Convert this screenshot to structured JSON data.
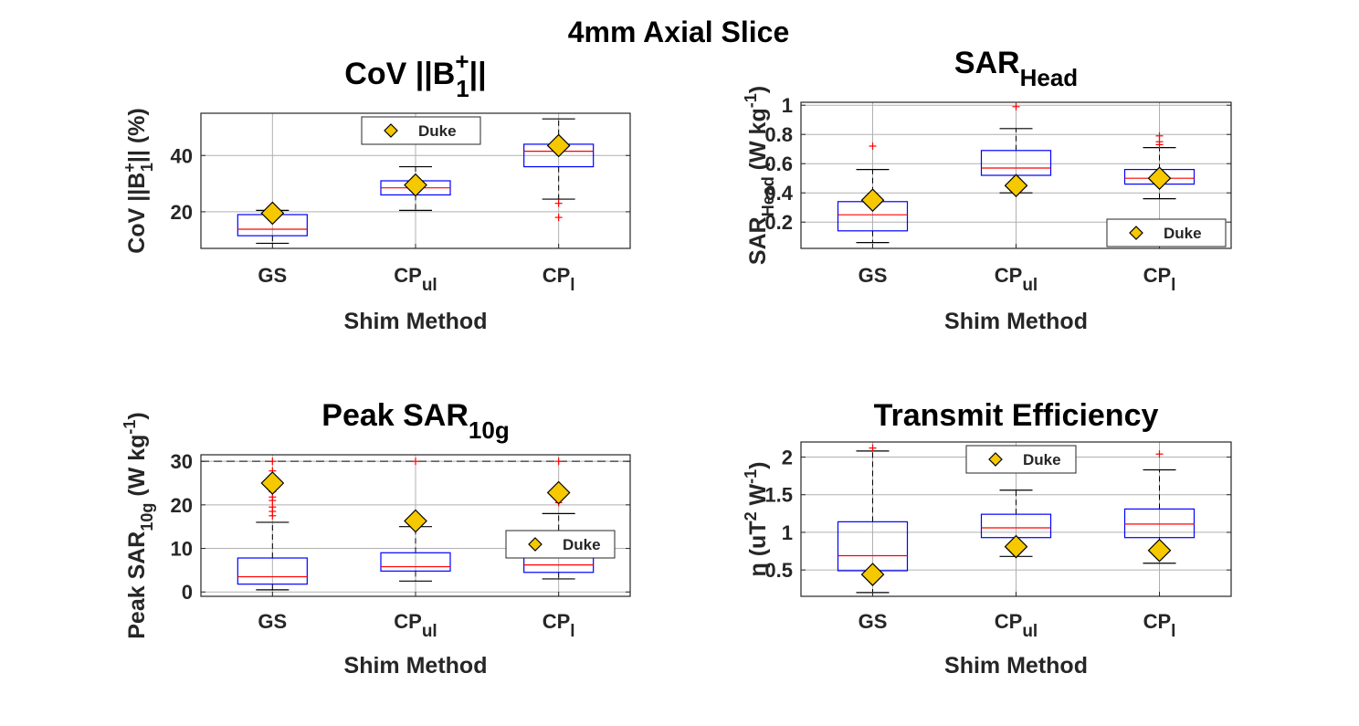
{
  "figure": {
    "title": "4mm Axial Slice",
    "legend_label": "Duke"
  },
  "colors": {
    "box": "#0000ff",
    "median": "#ff0000",
    "outlier": "#ff0000",
    "whisker": "#000000",
    "marker_fill": "#f5c800",
    "marker_edge": "#000000",
    "grid": "#b0b0b0",
    "axes": "#262626"
  },
  "chart_data": [
    {
      "type": "box",
      "title": {
        "base": "CoV ||B",
        "sup": "+",
        "sub": "1",
        "after": "||"
      },
      "xlabel": "Shim Method",
      "ylabel": {
        "base": "CoV ||B",
        "sup": "+",
        "sub": "1",
        "after": "|| (%)"
      },
      "categories": [
        {
          "base": "GS",
          "sub": ""
        },
        {
          "base": "CP",
          "sub": "ul"
        },
        {
          "base": "CP",
          "sub": "l"
        }
      ],
      "ylim": [
        7,
        55
      ],
      "yticks": [
        20,
        40
      ],
      "grid": true,
      "legend_position": "top-center",
      "boxes": [
        {
          "q1": 11.5,
          "median": 13.8,
          "q3": 19.0,
          "whisker_low": 8.8,
          "whisker_high": 20.5,
          "outliers": []
        },
        {
          "q1": 26.0,
          "median": 28.5,
          "q3": 31.0,
          "whisker_low": 20.5,
          "whisker_high": 36.0,
          "outliers": []
        },
        {
          "q1": 36.0,
          "median": 41.5,
          "q3": 44.0,
          "whisker_low": 24.5,
          "whisker_high": 53.0,
          "outliers": [
            23.0,
            18.0
          ]
        }
      ],
      "duke": [
        19.5,
        29.5,
        43.5
      ]
    },
    {
      "type": "box",
      "title": {
        "base": "SAR",
        "sub": "Head"
      },
      "xlabel": "Shim Method",
      "ylabel": {
        "base": "SAR",
        "sub": "Head",
        "after": " (W kg",
        "sup2": "-1",
        "after2": ")"
      },
      "categories": [
        {
          "base": "GS",
          "sub": ""
        },
        {
          "base": "CP",
          "sub": "ul"
        },
        {
          "base": "CP",
          "sub": "l"
        }
      ],
      "ylim": [
        0.02,
        1.02
      ],
      "yticks": [
        0.2,
        0.4,
        0.6,
        0.8,
        1
      ],
      "ytick_labels": [
        "0.2",
        "0.4",
        "0.6",
        "0.8",
        "1"
      ],
      "grid": true,
      "legend_position": "bottom-right",
      "boxes": [
        {
          "q1": 0.14,
          "median": 0.25,
          "q3": 0.34,
          "whisker_low": 0.06,
          "whisker_high": 0.56,
          "outliers": [
            0.72
          ]
        },
        {
          "q1": 0.52,
          "median": 0.57,
          "q3": 0.69,
          "whisker_low": 0.4,
          "whisker_high": 0.84,
          "outliers": [
            0.99
          ]
        },
        {
          "q1": 0.46,
          "median": 0.5,
          "q3": 0.56,
          "whisker_low": 0.36,
          "whisker_high": 0.71,
          "outliers": [
            0.73,
            0.75,
            0.79
          ]
        }
      ],
      "duke": [
        0.35,
        0.45,
        0.5
      ]
    },
    {
      "type": "box",
      "title": {
        "base": "Peak SAR",
        "sub": "10g"
      },
      "xlabel": "Shim Method",
      "ylabel": {
        "base": "Peak SAR",
        "sub": "10g",
        "after": " (W kg",
        "sup2": "-1",
        "after2": ")"
      },
      "categories": [
        {
          "base": "GS",
          "sub": ""
        },
        {
          "base": "CP",
          "sub": "ul"
        },
        {
          "base": "CP",
          "sub": "l"
        }
      ],
      "ylim": [
        -1,
        31.5
      ],
      "yticks": [
        0,
        10,
        20,
        30
      ],
      "grid": true,
      "limit_line": 30,
      "legend_position": "center-right",
      "boxes": [
        {
          "q1": 1.8,
          "median": 3.5,
          "q3": 7.8,
          "whisker_low": 0.5,
          "whisker_high": 16.0,
          "outliers": [
            17.5,
            18.5,
            19.5,
            21.0,
            21.8,
            23.0,
            24.5,
            26.5,
            27.8,
            30.0
          ]
        },
        {
          "q1": 4.8,
          "median": 5.8,
          "q3": 9.0,
          "whisker_low": 2.5,
          "whisker_high": 15.0,
          "outliers": [
            16.0,
            17.0,
            30.0
          ]
        },
        {
          "q1": 4.5,
          "median": 6.2,
          "q3": 10.0,
          "whisker_low": 3.0,
          "whisker_high": 18.0,
          "outliers": [
            20.5,
            22.5,
            23.5,
            30.0
          ]
        }
      ],
      "duke": [
        25.0,
        16.3,
        22.8
      ]
    },
    {
      "type": "box",
      "title": {
        "base": "Transmit Efficiency"
      },
      "xlabel": "Shim Method",
      "ylabel": {
        "base": "η (uT",
        "sup": "2",
        "after": " W",
        "sup2": "-1",
        "after2": ")"
      },
      "categories": [
        {
          "base": "GS",
          "sub": ""
        },
        {
          "base": "CP",
          "sub": "ul"
        },
        {
          "base": "CP",
          "sub": "l"
        }
      ],
      "ylim": [
        0.15,
        2.2
      ],
      "yticks": [
        0.5,
        1,
        1.5,
        2
      ],
      "ytick_labels": [
        "0.5",
        "1",
        "1.5",
        "2"
      ],
      "grid": true,
      "legend_position": "top-center",
      "boxes": [
        {
          "q1": 0.49,
          "median": 0.69,
          "q3": 1.14,
          "whisker_low": 0.2,
          "whisker_high": 2.08,
          "outliers": [
            2.12
          ]
        },
        {
          "q1": 0.93,
          "median": 1.06,
          "q3": 1.24,
          "whisker_low": 0.68,
          "whisker_high": 1.56,
          "outliers": []
        },
        {
          "q1": 0.93,
          "median": 1.11,
          "q3": 1.31,
          "whisker_low": 0.59,
          "whisker_high": 1.83,
          "outliers": [
            2.04
          ]
        }
      ],
      "duke": [
        0.44,
        0.81,
        0.76
      ]
    }
  ]
}
